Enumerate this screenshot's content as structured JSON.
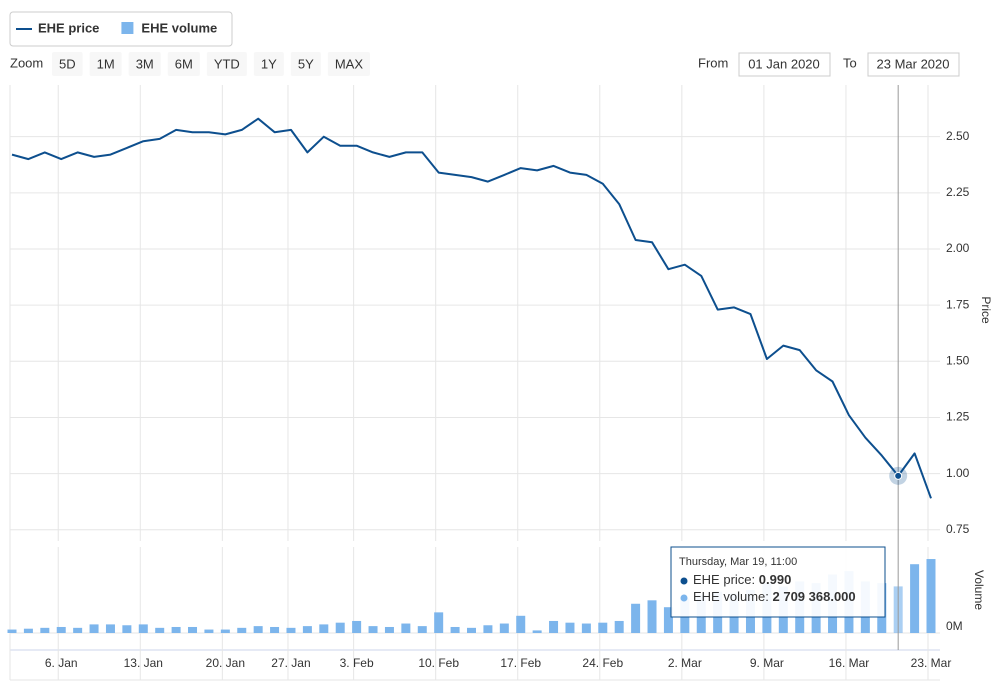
{
  "chart_data": {
    "type": "line",
    "categories": [
      null,
      null,
      null,
      "6. Jan",
      null,
      null,
      null,
      null,
      "13. Jan",
      null,
      null,
      null,
      null,
      "20. Jan",
      null,
      null,
      null,
      "27. Jan",
      null,
      null,
      null,
      "3. Feb",
      null,
      null,
      null,
      null,
      "10. Feb",
      null,
      null,
      null,
      null,
      "17. Feb",
      null,
      null,
      null,
      null,
      "24. Feb",
      null,
      null,
      null,
      null,
      "2. Mar",
      null,
      null,
      null,
      null,
      "9. Mar",
      null,
      null,
      null,
      null,
      "16. Mar",
      null,
      null,
      null,
      null,
      "23. Mar"
    ],
    "series": [
      {
        "name": "EHE price",
        "color": "#0d4f8e",
        "axis": "y",
        "values": [
          2.42,
          2.4,
          2.43,
          2.4,
          2.43,
          2.41,
          2.42,
          2.45,
          2.48,
          2.49,
          2.53,
          2.52,
          2.52,
          2.51,
          2.53,
          2.58,
          2.52,
          2.53,
          2.43,
          2.5,
          2.46,
          2.46,
          2.43,
          2.41,
          2.43,
          2.43,
          2.34,
          2.33,
          2.32,
          2.3,
          2.33,
          2.36,
          2.35,
          2.37,
          2.34,
          2.33,
          2.29,
          2.2,
          2.04,
          2.03,
          1.91,
          1.93,
          1.88,
          1.73,
          1.74,
          1.71,
          1.51,
          1.57,
          1.55,
          1.46,
          1.41,
          1.26,
          1.16,
          1.08,
          0.99,
          1.09,
          0.89
        ]
      },
      {
        "name": "EHE volume",
        "color": "#7cb5ec",
        "axis": "y2",
        "type": "bar",
        "values": [
          200000,
          250000,
          300000,
          350000,
          300000,
          500000,
          500000,
          450000,
          500000,
          300000,
          350000,
          350000,
          200000,
          200000,
          300000,
          400000,
          350000,
          300000,
          400000,
          500000,
          600000,
          700000,
          400000,
          350000,
          550000,
          400000,
          1200000,
          350000,
          300000,
          450000,
          550000,
          1000000,
          150000,
          700000,
          600000,
          550000,
          600000,
          700000,
          1700000,
          1900000,
          1500000,
          2000000,
          2200000,
          2400000,
          2300000,
          2500000,
          2900000,
          2700000,
          3000000,
          2900000,
          3400000,
          3600000,
          3000000,
          2900000,
          2709368,
          4000000,
          4300000
        ]
      }
    ],
    "ylim": [
      0.7,
      2.73
    ],
    "yticks": [
      0.75,
      {
        "value": 1,
        "label": "1.00"
      },
      1.25,
      {
        "value": 1.5,
        "label": "1.50"
      },
      1.75,
      {
        "value": 2,
        "label": "2.00"
      },
      2.25,
      {
        "value": 2.5,
        "label": "2.50"
      }
    ],
    "y2lim": [
      0,
      5000000
    ],
    "y2ticks": [
      {
        "value": 0,
        "label": "0M"
      }
    ],
    "ylabel": "Price",
    "y2label": "Volume",
    "grid": true,
    "legend": "top-left"
  },
  "zoom": {
    "label": "Zoom",
    "buttons": [
      "5D",
      "1M",
      "3M",
      "6M",
      "YTD",
      "1Y",
      "5Y",
      "MAX"
    ]
  },
  "range": {
    "from_label": "From",
    "from": "01 Jan 2020",
    "to_label": "To",
    "to": "23 Mar 2020"
  },
  "tooltip": {
    "header": "Thursday, Mar 19, 11:00",
    "rows": [
      {
        "name": "EHE price:",
        "label": "0.990"
      },
      {
        "name": "EHE volume:",
        "label": "2 709 368.000"
      }
    ]
  }
}
